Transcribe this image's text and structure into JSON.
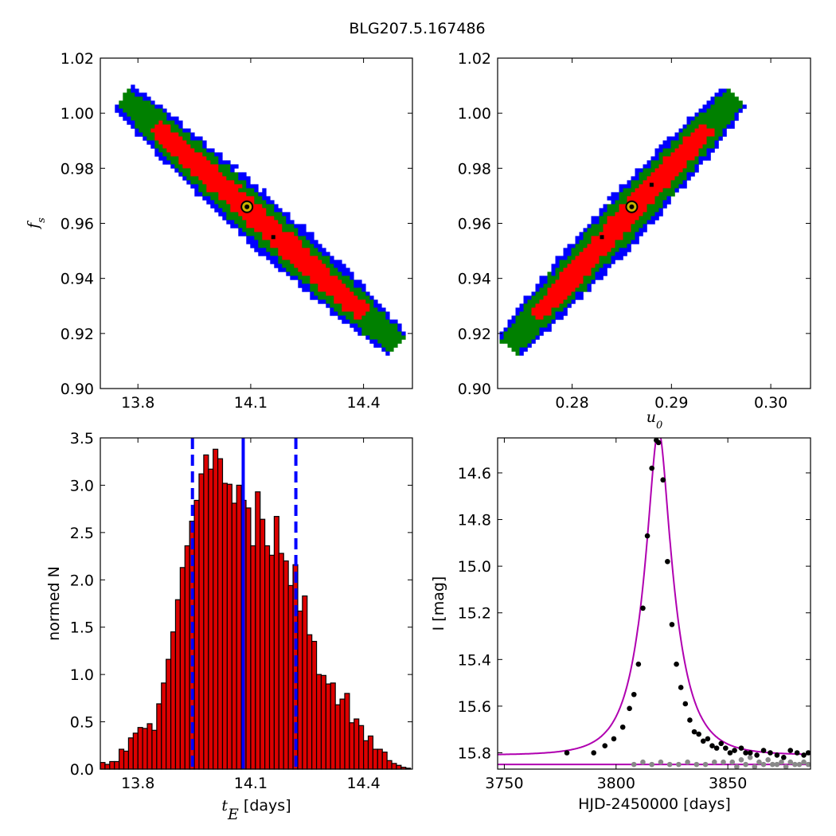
{
  "figure_title": "BLG207.5.167486",
  "colors": {
    "sigma1": "#ff0000",
    "sigma2": "#008000",
    "sigma3": "#0000ff",
    "best_fit_marker_fill": "#c8b400",
    "hist_bar": "#dd0000",
    "median_line": "#0000ff",
    "model_curve": "#b000b0",
    "data_main": "#000000",
    "data_secondary": "#888888"
  },
  "chart_data": [
    {
      "type": "heatmap",
      "name": "tE-fs posterior",
      "xlabel": "",
      "ylabel": "f_s",
      "xlim": [
        13.7,
        14.53
      ],
      "ylim": [
        0.9,
        1.02
      ],
      "xticks": [
        13.8,
        14.1,
        14.4
      ],
      "xtick_labels": [
        "13.8",
        "14.1",
        "14.4"
      ],
      "yticks": [
        0.9,
        0.92,
        0.94,
        0.96,
        0.98,
        1.0,
        1.02
      ],
      "ytick_labels": [
        "0.90",
        "0.92",
        "0.94",
        "0.96",
        "0.98",
        "1.00",
        "1.02"
      ],
      "contour_levels": [
        "1-sigma (red)",
        "2-sigma (green)",
        "3-sigma (blue)"
      ],
      "band_center": {
        "x": [
          13.76,
          14.49
        ],
        "y": [
          1.006,
          0.916
        ]
      },
      "best_fit": {
        "x": 14.09,
        "y": 0.966
      },
      "min_points": [
        {
          "x": 14.16,
          "y": 0.955
        }
      ]
    },
    {
      "type": "heatmap",
      "name": "u0-fs posterior",
      "xlabel": "u_0",
      "ylabel": "",
      "xlim": [
        0.2725,
        0.304
      ],
      "ylim": [
        0.9,
        1.02
      ],
      "xticks": [
        0.28,
        0.29,
        0.3
      ],
      "xtick_labels": [
        "0.28",
        "0.29",
        "0.30"
      ],
      "yticks": [
        0.9,
        0.92,
        0.94,
        0.96,
        0.98,
        1.0,
        1.02
      ],
      "ytick_labels": [
        "0.90",
        "0.92",
        "0.94",
        "0.96",
        "0.98",
        "1.00",
        "1.02"
      ],
      "contour_levels": [
        "1-sigma (red)",
        "2-sigma (green)",
        "3-sigma (blue)"
      ],
      "band_center": {
        "x": [
          0.2735,
          0.2965
        ],
        "y": [
          0.915,
          1.006
        ]
      },
      "best_fit": {
        "x": 0.286,
        "y": 0.966
      },
      "min_points": [
        {
          "x": 0.283,
          "y": 0.955
        },
        {
          "x": 0.288,
          "y": 0.974
        }
      ]
    },
    {
      "type": "bar",
      "name": "tE histogram",
      "xlabel": "t_E  [days]",
      "ylabel": "normed N",
      "xlim": [
        13.7,
        14.53
      ],
      "ylim": [
        0.0,
        3.5
      ],
      "xticks": [
        13.8,
        14.1,
        14.4
      ],
      "xtick_labels": [
        "13.8",
        "14.1",
        "14.4"
      ],
      "yticks": [
        0.0,
        0.5,
        1.0,
        1.5,
        2.0,
        2.5,
        3.0,
        3.5
      ],
      "ytick_labels": [
        "0.0",
        "0.5",
        "1.0",
        "1.5",
        "2.0",
        "2.5",
        "3.0",
        "3.5"
      ],
      "bin_start": 13.7,
      "bin_width": 0.0125,
      "values": [
        0.07,
        0.05,
        0.08,
        0.08,
        0.21,
        0.19,
        0.33,
        0.38,
        0.44,
        0.43,
        0.48,
        0.41,
        0.69,
        0.91,
        1.16,
        1.45,
        1.79,
        2.13,
        2.36,
        2.62,
        2.84,
        3.12,
        3.32,
        3.17,
        3.38,
        3.28,
        3.02,
        3.01,
        2.81,
        3.0,
        2.84,
        2.76,
        2.36,
        2.93,
        2.64,
        2.36,
        2.26,
        2.67,
        2.28,
        2.2,
        1.94,
        2.16,
        1.67,
        1.83,
        1.42,
        1.35,
        1.0,
        0.99,
        0.9,
        0.91,
        0.68,
        0.74,
        0.8,
        0.49,
        0.53,
        0.46,
        0.3,
        0.35,
        0.21,
        0.21,
        0.18,
        0.09,
        0.06,
        0.04,
        0.02,
        0.01
      ],
      "median": 14.08,
      "sigma_bounds": [
        13.945,
        14.22
      ]
    },
    {
      "type": "scatter",
      "name": "light curve",
      "xlabel": "HJD-2450000 [days]",
      "ylabel": "I [mag]",
      "xlim": [
        3747,
        3887
      ],
      "ylim": [
        15.87,
        14.45
      ],
      "y_inverted": true,
      "xticks": [
        3750,
        3800,
        3850
      ],
      "xtick_labels": [
        "3750",
        "3800",
        "3850"
      ],
      "yticks": [
        14.6,
        14.8,
        15.0,
        15.2,
        15.4,
        15.6,
        15.8
      ],
      "ytick_labels": [
        "14.6",
        "14.8",
        "15.0",
        "15.2",
        "15.4",
        "15.6",
        "15.8"
      ],
      "model": {
        "t0": 3819.0,
        "u0": 0.286,
        "tE": 14.09,
        "I_base": 15.81
      },
      "secondary_model_level": 15.85,
      "series": [
        {
          "x": [
            3778,
            3790,
            3795,
            3799,
            3803,
            3806,
            3808,
            3810,
            3812,
            3814,
            3816,
            3818,
            3819,
            3821,
            3823,
            3825,
            3827,
            3829,
            3831,
            3833,
            3835,
            3837,
            3839,
            3841,
            3843,
            3845,
            3847,
            3849,
            3851,
            3853,
            3856,
            3858,
            3860,
            3863,
            3866,
            3869,
            3872,
            3875,
            3878,
            3881,
            3884,
            3886
          ],
          "y": [
            15.8,
            15.8,
            15.77,
            15.74,
            15.69,
            15.61,
            15.55,
            15.42,
            15.18,
            14.87,
            14.58,
            14.46,
            14.47,
            14.63,
            14.98,
            15.25,
            15.42,
            15.52,
            15.59,
            15.66,
            15.71,
            15.72,
            15.75,
            15.74,
            15.77,
            15.78,
            15.76,
            15.78,
            15.8,
            15.79,
            15.78,
            15.8,
            15.8,
            15.81,
            15.79,
            15.8,
            15.81,
            15.82,
            15.79,
            15.8,
            15.81,
            15.8
          ]
        },
        {
          "x": [
            3808,
            3812,
            3816,
            3820,
            3824,
            3828,
            3832,
            3836,
            3840,
            3844,
            3848,
            3852,
            3854,
            3856,
            3858,
            3860,
            3862,
            3864,
            3866,
            3868,
            3870,
            3872,
            3874,
            3876,
            3878,
            3880,
            3882,
            3884,
            3886
          ],
          "y": [
            15.85,
            15.84,
            15.85,
            15.84,
            15.85,
            15.85,
            15.84,
            15.85,
            15.85,
            15.84,
            15.84,
            15.84,
            15.86,
            15.83,
            15.85,
            15.82,
            15.86,
            15.84,
            15.85,
            15.83,
            15.85,
            15.85,
            15.84,
            15.86,
            15.84,
            15.85,
            15.85,
            15.84,
            15.85
          ]
        }
      ]
    }
  ]
}
